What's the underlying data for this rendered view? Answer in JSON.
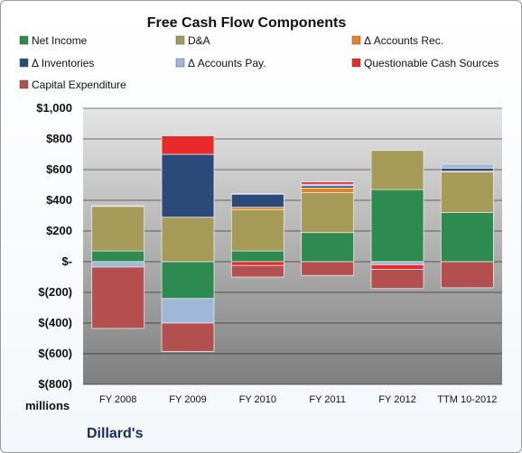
{
  "chart_data": {
    "type": "bar",
    "stacked": true,
    "title": "Free Cash Flow Components",
    "unit_label": "millions",
    "company": "Dillard's",
    "categories": [
      "FY 2008",
      "FY 2009",
      "FY 2010",
      "FY 2011",
      "FY 2012",
      "TTM 10-2012"
    ],
    "ylim": [
      -800,
      1000
    ],
    "yticks": [
      {
        "value": 1000,
        "label": "$1,000"
      },
      {
        "value": 800,
        "label": "$800"
      },
      {
        "value": 600,
        "label": "$600"
      },
      {
        "value": 400,
        "label": "$400"
      },
      {
        "value": 200,
        "label": "$200"
      },
      {
        "value": 0,
        "label": "$-"
      },
      {
        "value": -200,
        "label": "$(200)"
      },
      {
        "value": -400,
        "label": "$(400)"
      },
      {
        "value": -600,
        "label": "$(600)"
      },
      {
        "value": -800,
        "label": "$(800)"
      }
    ],
    "grid": true,
    "legend_position": "top",
    "series": [
      {
        "name": "Net Income",
        "color": "#2e8b4f",
        "values": [
          70,
          -240,
          70,
          190,
          470,
          320
        ]
      },
      {
        "name": "D&A",
        "color": "#a59a58",
        "values": [
          290,
          290,
          270,
          260,
          255,
          265
        ]
      },
      {
        "name": "Δ Accounts Rec.",
        "color": "#e8821e",
        "values": [
          5,
          0,
          15,
          30,
          0,
          5
        ]
      },
      {
        "name": "Δ Inventories",
        "color": "#2b4a7a",
        "values": [
          0,
          410,
          85,
          15,
          0,
          20
        ]
      },
      {
        "name": "Δ Accounts Pay.",
        "color": "#9fb8d8",
        "values": [
          -35,
          -160,
          5,
          10,
          -20,
          25
        ]
      },
      {
        "name": "Questionable Cash Sources",
        "color": "#e82a2a",
        "values": [
          0,
          120,
          -25,
          15,
          -30,
          0
        ]
      },
      {
        "name": "Capital Expenditure",
        "color": "#b34f4f",
        "values": [
          -400,
          -185,
          -75,
          -90,
          -125,
          -170
        ]
      }
    ]
  }
}
